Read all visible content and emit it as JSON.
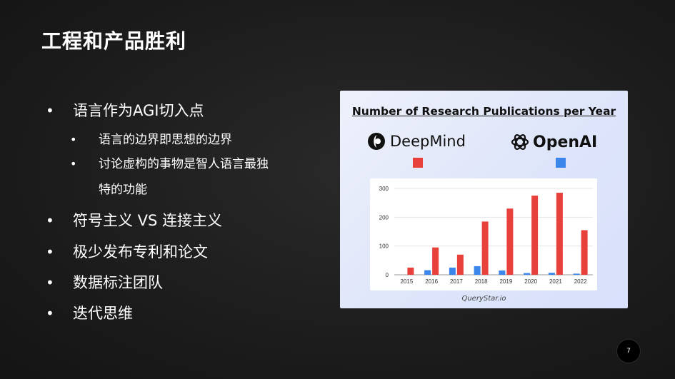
{
  "slide": {
    "title": "工程和产品胜利",
    "page_number": "7"
  },
  "bullets": [
    {
      "text": "语言作为AGI切入点",
      "children": [
        {
          "text": "语言的边界即思想的边界"
        },
        {
          "text": "讨论虚构的事物是智人语言最独",
          "cont": "特的功能"
        }
      ]
    },
    {
      "text": "符号主义 VS 连接主义"
    },
    {
      "text": "极少发布专利和论文"
    },
    {
      "text": "数据标注团队"
    },
    {
      "text": "迭代思维"
    }
  ],
  "image": {
    "title": "Number of Research Publications per Year",
    "logo_left": "DeepMind",
    "logo_right": "OpenAI",
    "credit": "QueryStar.io",
    "icons": [
      "deepmind-logo-icon",
      "openai-logo-icon"
    ]
  },
  "chart_data": {
    "type": "bar",
    "categories": [
      "2015",
      "2016",
      "2017",
      "2018",
      "2019",
      "2020",
      "2021",
      "2022"
    ],
    "series": [
      {
        "name": "DeepMind",
        "color": "#e8413c",
        "values": [
          25,
          95,
          70,
          185,
          230,
          275,
          285,
          155
        ]
      },
      {
        "name": "OpenAI",
        "color": "#3b86ea",
        "values": [
          0,
          16,
          25,
          30,
          15,
          6,
          7,
          4
        ]
      }
    ],
    "ylim": [
      0,
      300
    ],
    "yticks": [
      0,
      100,
      200,
      300
    ],
    "grid": true
  }
}
